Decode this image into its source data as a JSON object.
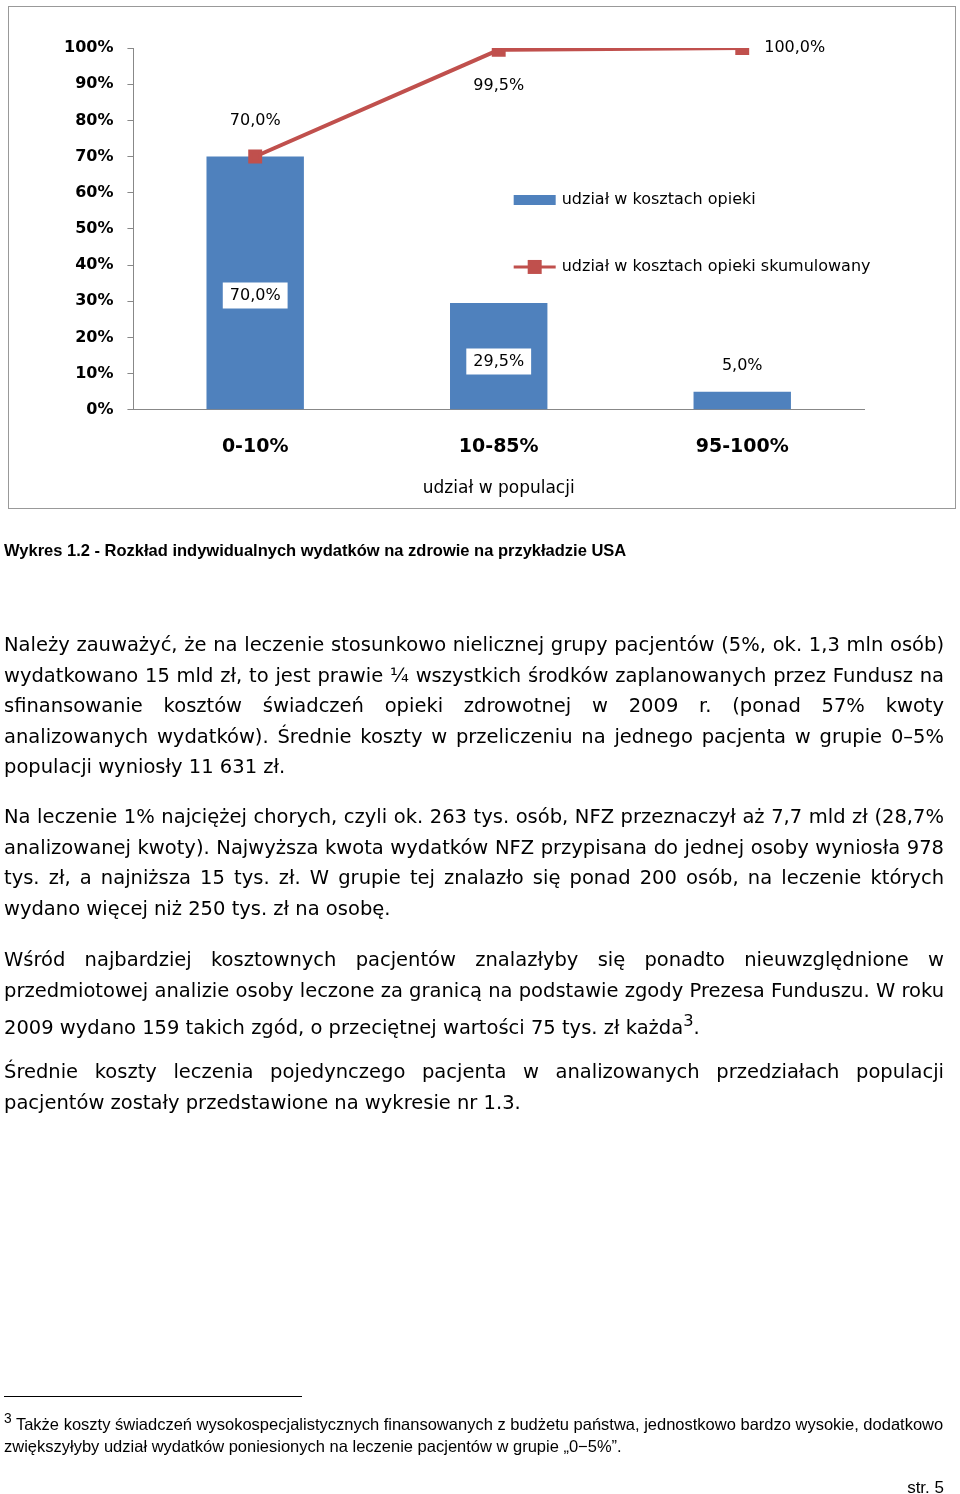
{
  "chart_data": {
    "type": "bar",
    "xlabel": "udział w populacji",
    "categories": [
      "0-10%",
      "10-85%",
      "95-100%"
    ],
    "series": [
      {
        "name": "udział w kosztach opieki",
        "color": "#4f81bd",
        "values": [
          70,
          29.5,
          5
        ],
        "value_labels": [
          "70,0%",
          "29,5%",
          "5,0%"
        ]
      },
      {
        "name": "udział w kosztach opieki skumulowany",
        "type": "line",
        "color": "#c0504d",
        "values": [
          70,
          99.5,
          100
        ],
        "value_labels": [
          "70,0%",
          "99,5%",
          "100,0%"
        ]
      }
    ],
    "ylim": [
      0,
      100
    ],
    "yticks": [
      {
        "value": 0,
        "label": "0%"
      },
      {
        "value": 10,
        "label": "10%"
      },
      {
        "value": 20,
        "label": "20%"
      },
      {
        "value": 30,
        "label": "30%"
      },
      {
        "value": 40,
        "label": "40%"
      },
      {
        "value": 50,
        "label": "50%"
      },
      {
        "value": 60,
        "label": "60%"
      },
      {
        "value": 70,
        "label": "70%"
      },
      {
        "value": 80,
        "label": "80%"
      },
      {
        "value": 90,
        "label": "90%"
      },
      {
        "value": 100,
        "label": "100%"
      }
    ],
    "grid": false,
    "legend": "right",
    "marker": "square",
    "line_style": "solid",
    "annotations": [
      "Wykres 1.2 - Rozkład indywidualnych wydatków na zdrowie na przykładzie USA",
      "Należy zauważyć, że na leczenie stosunkowo nielicznej grupy pacjentów (5%, ok. 1,3 mln osób) wydatkowano 15 mld zł, to jest prawie ¼ wszystkich środków zaplanowanych przez Fundusz na sfinansowanie kosztów świadczeń opieki zdrowotnej w 2009 r. (ponad 57% kwoty analizowanych wydatków). Średnie koszty w przeliczeniu na jednego pacjenta w grupie 0–5% populacji wyniosły 11 631 zł.",
      "Na leczenie 1% najciężej chorych, czyli ok. 263 tys. osób, NFZ przeznaczył aż 7,7 mld zł (28,7% analizowanej kwoty). Najwyższa kwota wydatków NFZ przypisana do jednej osoby wyniosła 978 tys. zł, a najniższa 15 tys. zł. W grupie tej znalazło się ponad 200 osób, na leczenie których wydano więcej niż 250 tys. zł na osobę.",
      "Wśród najbardziej kosztownych pacjentów znalazłyby się ponadto nieuwzględnione w przedmiotowej analizie osoby leczone za granicą na podstawie zgody Prezesa Funduszu. W roku 2009 wydano 159 takich zgód, o przeciętnej wartości 75 tys. zł każda$^{3}$.",
      "Średnie koszty leczenia pojedynczego pacjenta w analizowanych przedziałach populacji pacjentów zostały przedstawione na wykresie nr 1.3.",
      "$^{3}$ Także koszty świadczeń wysokospecjalistycznych finansowanych z budżetu państwa, jednostkowo bardzo wysokie, dodatkowo zwiększyłyby udział wydatków poniesionych na leczenie pacjentów w grupie „0−5%”.",
      "str. 5"
    ]
  }
}
